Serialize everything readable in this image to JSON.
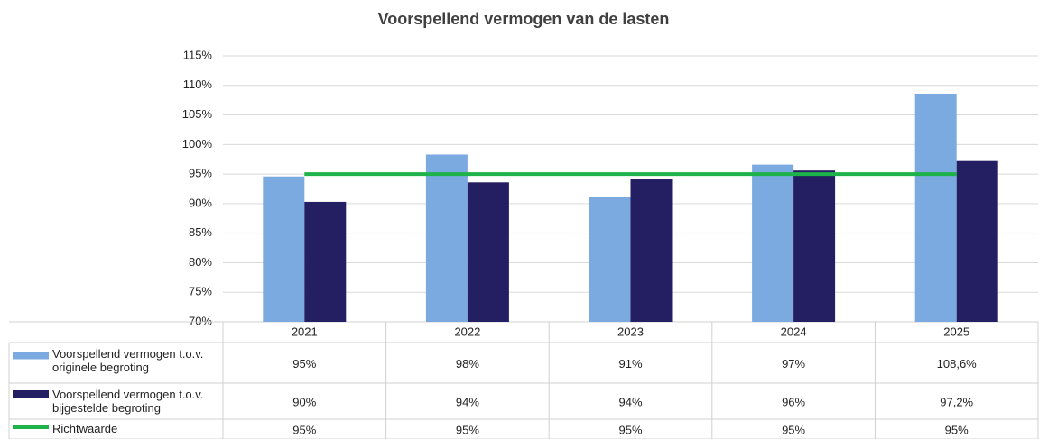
{
  "chart_data": {
    "type": "bar",
    "title": "Voorspellend vermogen van de lasten",
    "categories": [
      "2021",
      "2022",
      "2023",
      "2024",
      "2025"
    ],
    "series": [
      {
        "name": "Voorspellend vermogen t.o.v. originele begroting",
        "color": "#7aaae0",
        "type": "bar",
        "values": [
          94.6,
          98.3,
          91.1,
          96.6,
          108.6
        ],
        "value_labels": [
          "95%",
          "98%",
          "91%",
          "97%",
          "108,6%"
        ]
      },
      {
        "name": "Voorspellend vermogen t.o.v. bijgestelde begroting",
        "color": "#241f63",
        "type": "bar",
        "values": [
          90.3,
          93.6,
          94.1,
          95.6,
          97.2
        ],
        "value_labels": [
          "90%",
          "94%",
          "94%",
          "96%",
          "97,2%"
        ]
      },
      {
        "name": "Richtwaarde",
        "color": "#1db34a",
        "type": "line",
        "values": [
          95,
          95,
          95,
          95,
          95
        ],
        "value_labels": [
          "95%",
          "95%",
          "95%",
          "95%",
          "95%"
        ]
      }
    ],
    "ylim": [
      70,
      115
    ],
    "yticks": [
      {
        "value": 70,
        "label": "70%"
      },
      {
        "value": 75,
        "label": "75%"
      },
      {
        "value": 80,
        "label": "80%"
      },
      {
        "value": 85,
        "label": "85%"
      },
      {
        "value": 90,
        "label": "90%"
      },
      {
        "value": 95,
        "label": "95%"
      },
      {
        "value": 100,
        "label": "100%"
      },
      {
        "value": 105,
        "label": "105%"
      },
      {
        "value": 110,
        "label": "110%"
      },
      {
        "value": 115,
        "label": "115%"
      }
    ],
    "grid": true
  }
}
